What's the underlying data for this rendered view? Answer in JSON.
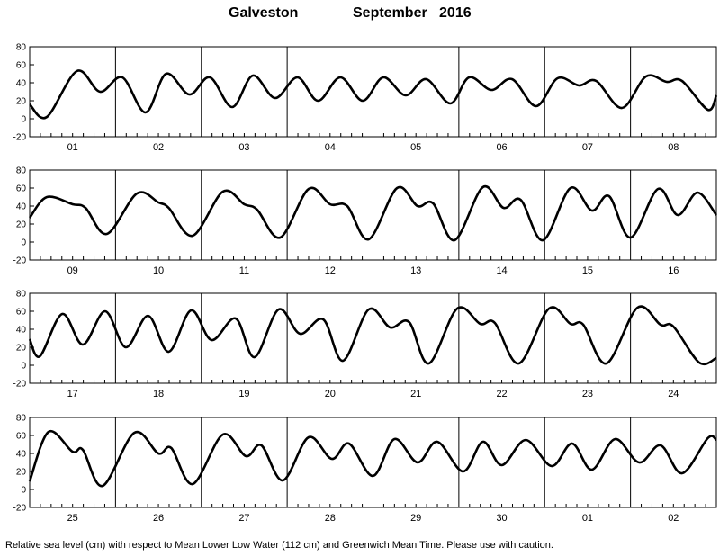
{
  "title": {
    "station": "Galveston",
    "period": "September   2016"
  },
  "caption": "Relative sea level (cm) with respect to Mean Lower Low Water (112 cm) and Greenwich Mean Time. Please use with caution.",
  "chart_data": {
    "type": "line",
    "ylim": [
      -20,
      80
    ],
    "yticks": [
      -20,
      0,
      20,
      40,
      60,
      80
    ],
    "days_per_panel": 8,
    "x_unit": "day of month (GMT)",
    "grid": false,
    "line_color": "#000000",
    "panels": [
      {
        "day_labels": [
          "01",
          "02",
          "03",
          "04",
          "05",
          "06",
          "07",
          "08"
        ],
        "series": [
          {
            "x": 0,
            "y": 16
          },
          {
            "x": 0.2,
            "y": 2
          },
          {
            "x": 0.55,
            "y": 53
          },
          {
            "x": 0.82,
            "y": 30
          },
          {
            "x": 1.08,
            "y": 46
          },
          {
            "x": 1.35,
            "y": 7
          },
          {
            "x": 1.59,
            "y": 50
          },
          {
            "x": 1.86,
            "y": 27
          },
          {
            "x": 2.1,
            "y": 46
          },
          {
            "x": 2.36,
            "y": 13
          },
          {
            "x": 2.6,
            "y": 48
          },
          {
            "x": 2.86,
            "y": 23
          },
          {
            "x": 3.12,
            "y": 46
          },
          {
            "x": 3.36,
            "y": 20
          },
          {
            "x": 3.62,
            "y": 46
          },
          {
            "x": 3.88,
            "y": 20
          },
          {
            "x": 4.12,
            "y": 46
          },
          {
            "x": 4.38,
            "y": 26
          },
          {
            "x": 4.62,
            "y": 44
          },
          {
            "x": 4.9,
            "y": 17
          },
          {
            "x": 5.12,
            "y": 46
          },
          {
            "x": 5.38,
            "y": 32
          },
          {
            "x": 5.62,
            "y": 44
          },
          {
            "x": 5.9,
            "y": 14
          },
          {
            "x": 6.15,
            "y": 45
          },
          {
            "x": 6.4,
            "y": 37
          },
          {
            "x": 6.6,
            "y": 42
          },
          {
            "x": 6.9,
            "y": 12
          },
          {
            "x": 7.18,
            "y": 47
          },
          {
            "x": 7.42,
            "y": 41
          },
          {
            "x": 7.6,
            "y": 42
          },
          {
            "x": 7.9,
            "y": 10
          },
          {
            "x": 8.0,
            "y": 26
          }
        ]
      },
      {
        "day_labels": [
          "09",
          "10",
          "11",
          "12",
          "13",
          "14",
          "15",
          "16"
        ],
        "series": [
          {
            "x": 0,
            "y": 27
          },
          {
            "x": 0.2,
            "y": 50
          },
          {
            "x": 0.5,
            "y": 42
          },
          {
            "x": 0.65,
            "y": 38
          },
          {
            "x": 0.9,
            "y": 9
          },
          {
            "x": 1.25,
            "y": 54
          },
          {
            "x": 1.5,
            "y": 44
          },
          {
            "x": 1.62,
            "y": 38
          },
          {
            "x": 1.9,
            "y": 7
          },
          {
            "x": 2.25,
            "y": 56
          },
          {
            "x": 2.5,
            "y": 42
          },
          {
            "x": 2.65,
            "y": 36
          },
          {
            "x": 2.92,
            "y": 5
          },
          {
            "x": 3.25,
            "y": 59
          },
          {
            "x": 3.5,
            "y": 42
          },
          {
            "x": 3.7,
            "y": 40
          },
          {
            "x": 3.95,
            "y": 3
          },
          {
            "x": 4.28,
            "y": 60
          },
          {
            "x": 4.52,
            "y": 40
          },
          {
            "x": 4.7,
            "y": 43
          },
          {
            "x": 4.95,
            "y": 2
          },
          {
            "x": 5.28,
            "y": 61
          },
          {
            "x": 5.52,
            "y": 38
          },
          {
            "x": 5.72,
            "y": 47
          },
          {
            "x": 5.98,
            "y": 2
          },
          {
            "x": 6.3,
            "y": 60
          },
          {
            "x": 6.55,
            "y": 35
          },
          {
            "x": 6.75,
            "y": 51
          },
          {
            "x": 7.0,
            "y": 5
          },
          {
            "x": 7.32,
            "y": 59
          },
          {
            "x": 7.55,
            "y": 30
          },
          {
            "x": 7.78,
            "y": 55
          },
          {
            "x": 8.0,
            "y": 30
          }
        ]
      },
      {
        "day_labels": [
          "17",
          "18",
          "19",
          "20",
          "21",
          "22",
          "23",
          "24"
        ],
        "series": [
          {
            "x": 0,
            "y": 29
          },
          {
            "x": 0.12,
            "y": 10
          },
          {
            "x": 0.38,
            "y": 57
          },
          {
            "x": 0.62,
            "y": 23
          },
          {
            "x": 0.88,
            "y": 60
          },
          {
            "x": 1.12,
            "y": 20
          },
          {
            "x": 1.38,
            "y": 55
          },
          {
            "x": 1.62,
            "y": 15
          },
          {
            "x": 1.88,
            "y": 61
          },
          {
            "x": 2.12,
            "y": 28
          },
          {
            "x": 2.4,
            "y": 52
          },
          {
            "x": 2.62,
            "y": 9
          },
          {
            "x": 2.9,
            "y": 62
          },
          {
            "x": 3.15,
            "y": 35
          },
          {
            "x": 3.42,
            "y": 51
          },
          {
            "x": 3.65,
            "y": 5
          },
          {
            "x": 3.95,
            "y": 62
          },
          {
            "x": 4.2,
            "y": 42
          },
          {
            "x": 4.42,
            "y": 48
          },
          {
            "x": 4.65,
            "y": 2
          },
          {
            "x": 4.98,
            "y": 63
          },
          {
            "x": 5.25,
            "y": 46
          },
          {
            "x": 5.42,
            "y": 47
          },
          {
            "x": 5.7,
            "y": 2
          },
          {
            "x": 6.05,
            "y": 63
          },
          {
            "x": 6.3,
            "y": 46
          },
          {
            "x": 6.45,
            "y": 45
          },
          {
            "x": 6.72,
            "y": 2
          },
          {
            "x": 7.08,
            "y": 64
          },
          {
            "x": 7.35,
            "y": 45
          },
          {
            "x": 7.5,
            "y": 43
          },
          {
            "x": 7.8,
            "y": 3
          },
          {
            "x": 8.0,
            "y": 8
          }
        ]
      },
      {
        "day_labels": [
          "25",
          "26",
          "27",
          "28",
          "29",
          "30",
          "01",
          "02"
        ],
        "series": [
          {
            "x": 0,
            "y": 9
          },
          {
            "x": 0.22,
            "y": 64
          },
          {
            "x": 0.5,
            "y": 42
          },
          {
            "x": 0.62,
            "y": 44
          },
          {
            "x": 0.85,
            "y": 4
          },
          {
            "x": 1.22,
            "y": 63
          },
          {
            "x": 1.5,
            "y": 40
          },
          {
            "x": 1.65,
            "y": 46
          },
          {
            "x": 1.9,
            "y": 6
          },
          {
            "x": 2.25,
            "y": 61
          },
          {
            "x": 2.52,
            "y": 37
          },
          {
            "x": 2.7,
            "y": 49
          },
          {
            "x": 2.95,
            "y": 10
          },
          {
            "x": 3.25,
            "y": 58
          },
          {
            "x": 3.52,
            "y": 34
          },
          {
            "x": 3.72,
            "y": 51
          },
          {
            "x": 4.0,
            "y": 15
          },
          {
            "x": 4.25,
            "y": 56
          },
          {
            "x": 4.52,
            "y": 30
          },
          {
            "x": 4.75,
            "y": 53
          },
          {
            "x": 5.05,
            "y": 20
          },
          {
            "x": 5.28,
            "y": 53
          },
          {
            "x": 5.5,
            "y": 27
          },
          {
            "x": 5.78,
            "y": 55
          },
          {
            "x": 6.08,
            "y": 26
          },
          {
            "x": 6.32,
            "y": 51
          },
          {
            "x": 6.55,
            "y": 22
          },
          {
            "x": 6.82,
            "y": 56
          },
          {
            "x": 7.1,
            "y": 30
          },
          {
            "x": 7.35,
            "y": 49
          },
          {
            "x": 7.6,
            "y": 18
          },
          {
            "x": 7.9,
            "y": 57
          },
          {
            "x": 8.0,
            "y": 55
          }
        ]
      }
    ]
  }
}
